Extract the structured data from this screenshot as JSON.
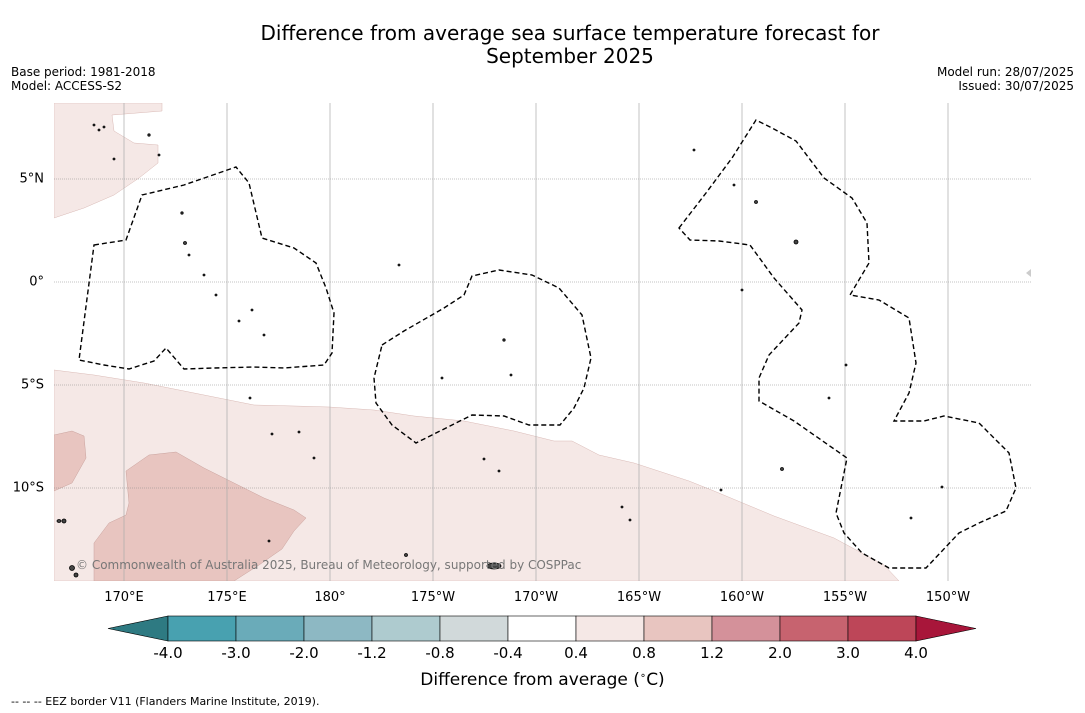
{
  "title_line1": "Difference from average sea surface temperature forecast for",
  "title_line2": "September 2025",
  "base_period": "Base period: 1981-2018",
  "model": "Model: ACCESS-S2",
  "model_run": "Model run: 28/07/2025",
  "issued": "Issued: 30/07/2025",
  "copyright": "© Commonwealth of Australia 2025, Bureau of Meteorology, supported by COSPPac",
  "colorbar_title": "Difference from average (°C)",
  "footnote": "-- -- -- EEZ border V11 (Flanders Marine Institute, 2019).",
  "longitude_labels": [
    "170°E",
    "175°E",
    "180°",
    "175°W",
    "170°W",
    "165°W",
    "160°W",
    "155°W",
    "150°W"
  ],
  "latitude_labels": [
    "5°N",
    "0°",
    "5°S",
    "10°S"
  ],
  "colorbar": {
    "labels": [
      "-4.0",
      "-3.0",
      "-2.0",
      "-1.2",
      "-0.8",
      "-0.4",
      "0.4",
      "0.8",
      "1.2",
      "2.0",
      "3.0",
      "4.0"
    ],
    "colors": [
      "#2e7a82",
      "#48a1b0",
      "#6aabb9",
      "#8db8c3",
      "#aecbcf",
      "#d1d9da",
      "#ffffff",
      "#f5e8e6",
      "#e8c5c0",
      "#d4919a",
      "#c7636f",
      "#bd4658",
      "#a8163a"
    ]
  },
  "map_colors": {
    "anomaly_0_4_to_0_8": "#f5e8e6",
    "anomaly_0_8_to_1_2": "#e8c5c0",
    "eez_border": "#000000"
  }
}
